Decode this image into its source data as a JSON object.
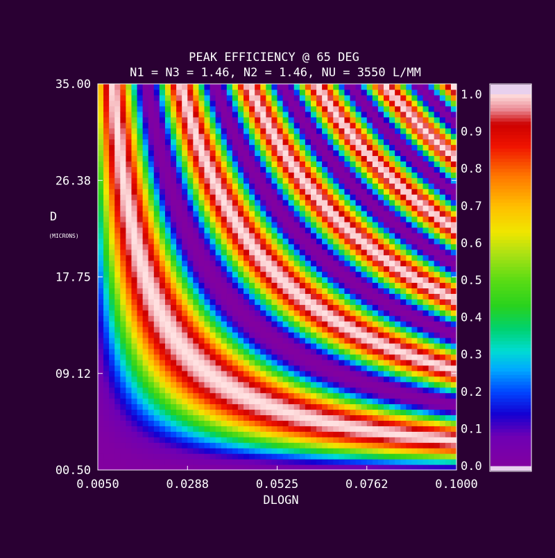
{
  "chart_data": {
    "type": "heatmap",
    "title": "PEAK EFFICIENCY @ 65 DEG",
    "subtitle": "N1 = N3 = 1.46, N2 = 1.46, NU = 3550 L/MM",
    "xlabel": "DLOGN",
    "ylabel": "D",
    "ylabel_unit": "(MICRONS)",
    "x_ticks": [
      "0.0050",
      "0.0288",
      "0.0525",
      "0.0762",
      "0.1000"
    ],
    "y_ticks": [
      "00.50",
      "09.12",
      "17.75",
      "26.38",
      "35.00"
    ],
    "xlim": [
      0.005,
      0.1
    ],
    "ylim": [
      0.5,
      35.0
    ],
    "colorbar_ticks": [
      "0.0",
      "0.1",
      "0.2",
      "0.3",
      "0.4",
      "0.5",
      "0.6",
      "0.7",
      "0.8",
      "0.9",
      "1.0"
    ],
    "colorbar_range": [
      0.0,
      1.0
    ],
    "model": "efficiency = sin^2(k * DLOGN * D), fringes along constant DLOGN*D",
    "grid": false,
    "legend": "colorbar-right"
  },
  "colors": {
    "background": "#2a0033",
    "frame": "#ffffff"
  }
}
